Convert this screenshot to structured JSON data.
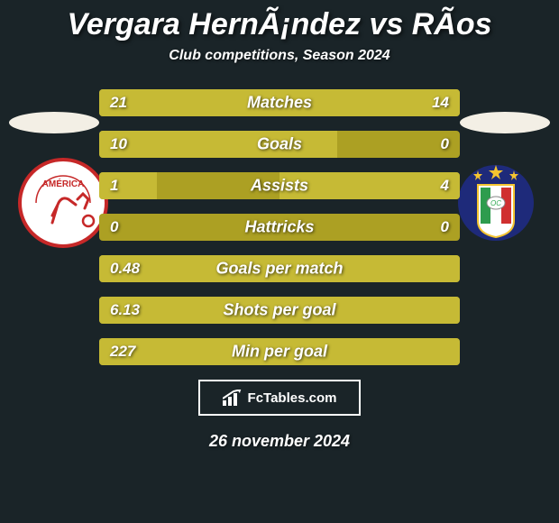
{
  "background_color": "#1a2428",
  "text_color": "#ffffff",
  "title": "Vergara HernÃ¡ndez vs RÃ­os",
  "title_fontsize": 34,
  "subtitle": "Club competitions, Season 2024",
  "subtitle_fontsize": 16,
  "bar_bg": "#aca023",
  "bar_left_fill": "#c6ba35",
  "bar_right_fill": "#c6ba35",
  "label_color": "#ffffff",
  "label_fontsize": 18,
  "value_fontsize": 17,
  "rows": [
    {
      "label": "Matches",
      "left_val": "21",
      "right_val": "14",
      "left_pct": 60,
      "right_pct": 40
    },
    {
      "label": "Goals",
      "left_val": "10",
      "right_val": "0",
      "left_pct": 66,
      "right_pct": 0
    },
    {
      "label": "Assists",
      "left_val": "1",
      "right_val": "4",
      "left_pct": 16,
      "right_pct": 50
    },
    {
      "label": "Hattricks",
      "left_val": "0",
      "right_val": "0",
      "left_pct": 0,
      "right_pct": 0
    },
    {
      "label": "Goals per match",
      "left_val": "0.48",
      "right_val": "",
      "left_pct": 100,
      "right_pct": 0
    },
    {
      "label": "Shots per goal",
      "left_val": "6.13",
      "right_val": "",
      "left_pct": 100,
      "right_pct": 0
    },
    {
      "label": "Min per goal",
      "left_val": "227",
      "right_val": "",
      "left_pct": 100,
      "right_pct": 0
    }
  ],
  "ellipse_color": "#f3efe5",
  "crest_left": {
    "bg": "#ffffff",
    "border": "#c62828",
    "text_fill": "#c62828",
    "text": "AMÉRICA"
  },
  "crest_right": {
    "bg": "#1e2a7a",
    "star_fill": "#f4c430",
    "stripe_green": "#2e9c4e",
    "stripe_white": "#ffffff",
    "stripe_red": "#d03030"
  },
  "footer": {
    "border_color": "#ffffff",
    "text": "FcTables.com",
    "icon_name": "chart-icon"
  },
  "date": "26 november 2024",
  "date_fontsize": 18
}
